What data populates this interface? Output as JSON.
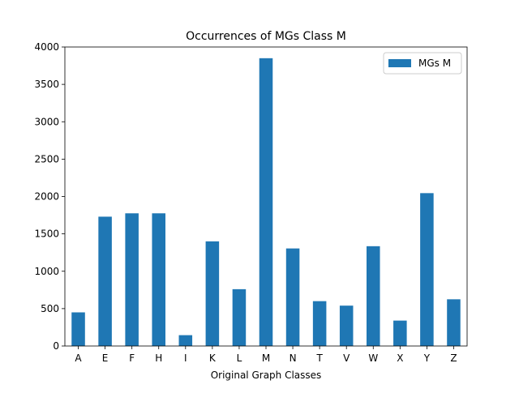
{
  "chart_data": {
    "type": "bar",
    "title": "Occurrences of MGs Class M",
    "xlabel": "Original Graph Classes",
    "ylabel": "",
    "categories": [
      "A",
      "E",
      "F",
      "H",
      "I",
      "K",
      "L",
      "M",
      "N",
      "T",
      "V",
      "W",
      "X",
      "Y",
      "Z"
    ],
    "series": [
      {
        "name": "MGs M",
        "values": [
          450,
          1730,
          1775,
          1775,
          145,
          1400,
          760,
          3850,
          1305,
          600,
          540,
          1335,
          340,
          2045,
          625
        ],
        "color": "#1f77b4"
      }
    ],
    "ylim": [
      0,
      4000
    ],
    "yticks": [
      0,
      500,
      1000,
      1500,
      2000,
      2500,
      3000,
      3500,
      4000
    ],
    "grid": false,
    "legend_position": "top-right"
  }
}
